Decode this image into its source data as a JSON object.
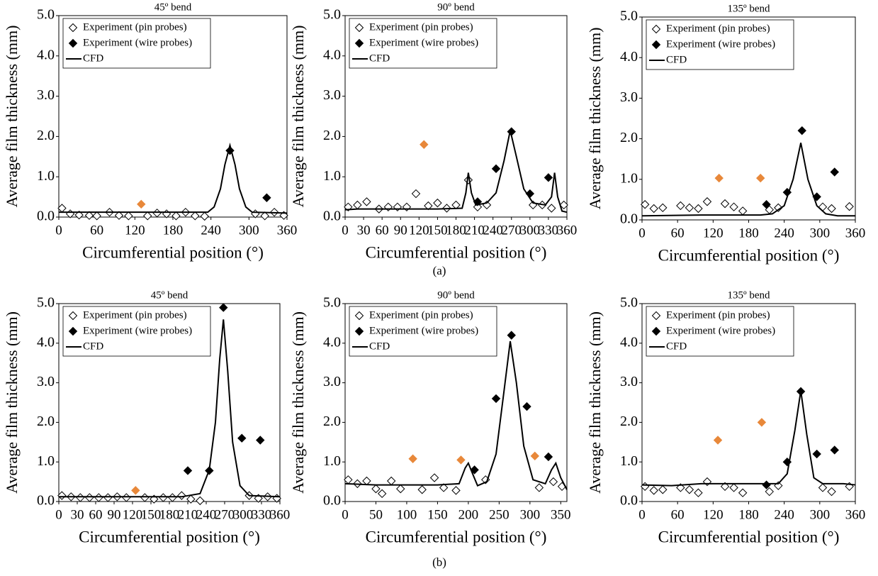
{
  "captions": [
    "(a)",
    "(b)"
  ],
  "chart_data": [
    {
      "type": "line",
      "title": "45º bend",
      "xlabel": "Circumferential position (°)",
      "ylabel": "Average film thickness (mm)",
      "xlim": [
        0,
        360
      ],
      "xticks": [
        0,
        60,
        120,
        180,
        240,
        300,
        360
      ],
      "ylim": [
        0,
        5
      ],
      "yticks": [
        {
          "value": 0,
          "label": "0.0"
        },
        {
          "value": 1,
          "label": "1.0"
        },
        {
          "value": 2,
          "label": "2.0"
        },
        {
          "value": 3,
          "label": "3.0"
        },
        {
          "value": 4,
          "label": "4.0"
        },
        {
          "value": 5,
          "label": "5.0"
        }
      ],
      "series": [
        {
          "name": "Experiment (pin probes)",
          "style": "open-diamond",
          "color": "#000000",
          "x": [
            5,
            18,
            32,
            48,
            60,
            80,
            95,
            110,
            140,
            155,
            170,
            185,
            200,
            215,
            230,
            310,
            325,
            340,
            355
          ],
          "values": [
            0.22,
            0.08,
            0.05,
            0.04,
            0.03,
            0.12,
            0.04,
            0.03,
            0.03,
            0.1,
            0.08,
            0.03,
            0.12,
            0.03,
            0.02,
            0.08,
            0.03,
            0.12,
            0.04
          ]
        },
        {
          "name": "Experiment (wire probes)",
          "style": "filled-diamond",
          "color": "#000000",
          "x": [
            130,
            270,
            328
          ],
          "values": [
            0.32,
            1.65,
            0.48
          ],
          "point_colors": [
            "#e8883a",
            "#000000",
            "#000000"
          ]
        },
        {
          "name": "CFD",
          "style": "line",
          "color": "#000000",
          "x": [
            0,
            100,
            200,
            235,
            245,
            255,
            262,
            270,
            278,
            285,
            295,
            305,
            360
          ],
          "values": [
            0.12,
            0.12,
            0.12,
            0.12,
            0.25,
            0.7,
            1.3,
            1.78,
            1.3,
            0.7,
            0.25,
            0.12,
            0.1
          ]
        }
      ]
    },
    {
      "type": "line",
      "title": "90º bend",
      "xlabel": "Circumferential position (°)",
      "ylabel": "Average film thickness (mm)",
      "xlim": [
        0,
        360
      ],
      "xticks": [
        0,
        30,
        60,
        90,
        120,
        150,
        180,
        210,
        240,
        270,
        300,
        330,
        360
      ],
      "ylim": [
        0,
        5
      ],
      "yticks": [
        {
          "value": 0,
          "label": "0.0"
        },
        {
          "value": 1,
          "label": "1.0"
        },
        {
          "value": 2,
          "label": "2.0"
        },
        {
          "value": 3,
          "label": "3.0"
        },
        {
          "value": 4,
          "label": "4.0"
        },
        {
          "value": 5,
          "label": "5.0"
        }
      ],
      "series": [
        {
          "name": "Experiment (pin probes)",
          "style": "open-diamond",
          "color": "#000000",
          "x": [
            5,
            20,
            35,
            55,
            70,
            85,
            100,
            115,
            135,
            150,
            165,
            180,
            200,
            215,
            230,
            305,
            320,
            335,
            355
          ],
          "values": [
            0.25,
            0.3,
            0.38,
            0.2,
            0.25,
            0.25,
            0.25,
            0.58,
            0.28,
            0.35,
            0.22,
            0.3,
            0.92,
            0.25,
            0.3,
            0.3,
            0.3,
            0.22,
            0.3
          ]
        },
        {
          "name": "Experiment (wire probes)",
          "style": "filled-diamond",
          "color": "#000000",
          "x": [
            128,
            215,
            245,
            270,
            300,
            330
          ],
          "values": [
            1.8,
            0.38,
            1.2,
            2.12,
            0.58,
            0.98
          ],
          "point_colors": [
            "#e8883a",
            "#000000",
            "#000000",
            "#000000",
            "#000000",
            "#000000"
          ]
        },
        {
          "name": "CFD",
          "style": "line",
          "color": "#000000",
          "x": [
            0,
            20,
            60,
            100,
            150,
            190,
            196,
            200,
            205,
            212,
            230,
            245,
            258,
            268,
            278,
            290,
            305,
            325,
            335,
            340,
            345,
            352,
            360
          ],
          "values": [
            0.18,
            0.2,
            0.2,
            0.2,
            0.2,
            0.22,
            0.6,
            1.1,
            0.6,
            0.3,
            0.35,
            0.6,
            1.4,
            2.15,
            1.5,
            0.7,
            0.35,
            0.3,
            0.5,
            1.1,
            0.5,
            0.15,
            0.12
          ]
        }
      ]
    },
    {
      "type": "line",
      "title": "135º bend",
      "xlabel": "Circumferential position (°)",
      "ylabel": "Average film thickness (mm)",
      "xlim": [
        0,
        360
      ],
      "xticks": [
        0,
        60,
        120,
        180,
        240,
        300,
        360
      ],
      "ylim": [
        0,
        5
      ],
      "yticks": [
        {
          "value": 0,
          "label": "0.0"
        },
        {
          "value": 1,
          "label": "1.0"
        },
        {
          "value": 2,
          "label": "2.0"
        },
        {
          "value": 3,
          "label": "3.0"
        },
        {
          "value": 4,
          "label": "4.0"
        },
        {
          "value": 5,
          "label": "5.0"
        }
      ],
      "series": [
        {
          "name": "Experiment (pin probes)",
          "style": "open-diamond",
          "color": "#000000",
          "x": [
            5,
            20,
            35,
            65,
            80,
            95,
            110,
            140,
            155,
            170,
            215,
            230,
            305,
            320,
            350
          ],
          "values": [
            0.38,
            0.28,
            0.3,
            0.35,
            0.3,
            0.28,
            0.45,
            0.4,
            0.32,
            0.22,
            0.25,
            0.3,
            0.32,
            0.28,
            0.33
          ]
        },
        {
          "name": "Experiment (wire probes)",
          "style": "filled-diamond",
          "color": "#000000",
          "x": [
            130,
            200,
            210,
            245,
            270,
            295,
            325
          ],
          "values": [
            1.03,
            1.03,
            0.38,
            0.68,
            2.2,
            0.57,
            1.18
          ],
          "point_colors": [
            "#e8883a",
            "#e8883a",
            "#000000",
            "#000000",
            "#000000",
            "#000000",
            "#000000"
          ]
        },
        {
          "name": "CFD",
          "style": "line",
          "color": "#000000",
          "x": [
            0,
            100,
            200,
            220,
            240,
            255,
            268,
            280,
            295,
            310,
            330,
            360
          ],
          "values": [
            0.1,
            0.12,
            0.12,
            0.15,
            0.35,
            1.0,
            1.9,
            1.0,
            0.35,
            0.15,
            0.1,
            0.1
          ]
        }
      ]
    },
    {
      "type": "line",
      "title": "45º bend",
      "xlabel": "Circumferential position (°)",
      "ylabel": "Average film thickness (mm)",
      "xlim": [
        0,
        360
      ],
      "xticks": [
        0,
        30,
        60,
        90,
        120,
        150,
        180,
        210,
        240,
        270,
        300,
        330,
        360
      ],
      "ylim": [
        0,
        5
      ],
      "yticks": [
        {
          "value": 0,
          "label": "0.0"
        },
        {
          "value": 1,
          "label": "1.0"
        },
        {
          "value": 2,
          "label": "2.0"
        },
        {
          "value": 3,
          "label": "3.0"
        },
        {
          "value": 4,
          "label": "4.0"
        },
        {
          "value": 5,
          "label": "5.0"
        }
      ],
      "series": [
        {
          "name": "Experiment (pin probes)",
          "style": "open-diamond",
          "color": "#000000",
          "x": [
            5,
            20,
            35,
            50,
            65,
            80,
            95,
            110,
            140,
            155,
            170,
            185,
            200,
            215,
            230,
            310,
            325,
            340,
            355
          ],
          "values": [
            0.15,
            0.12,
            0.1,
            0.1,
            0.1,
            0.1,
            0.12,
            0.1,
            0.1,
            0.06,
            0.1,
            0.1,
            0.15,
            0.06,
            0.02,
            0.15,
            0.08,
            0.12,
            0.08
          ]
        },
        {
          "name": "Experiment (wire probes)",
          "style": "filled-diamond",
          "color": "#000000",
          "x": [
            125,
            210,
            245,
            268,
            298,
            328
          ],
          "values": [
            0.28,
            0.78,
            0.78,
            4.9,
            1.6,
            1.55
          ],
          "point_colors": [
            "#e8883a",
            "#000000",
            "#000000",
            "#000000",
            "#000000",
            "#000000"
          ]
        },
        {
          "name": "CFD",
          "style": "line",
          "color": "#000000",
          "x": [
            0,
            200,
            230,
            245,
            255,
            262,
            268,
            275,
            283,
            295,
            310,
            360
          ],
          "values": [
            0.12,
            0.12,
            0.2,
            0.8,
            2.0,
            3.6,
            4.6,
            3.3,
            1.5,
            0.4,
            0.15,
            0.12
          ]
        }
      ]
    },
    {
      "type": "line",
      "title": "90º bend",
      "xlabel": "Circumferential position (°)",
      "ylabel": "Average film thickness (mm)",
      "xlim": [
        0,
        360
      ],
      "xticks": [
        0,
        50,
        100,
        150,
        200,
        250,
        300,
        350
      ],
      "ylim": [
        0,
        5
      ],
      "yticks": [
        {
          "value": 0,
          "label": "0.0"
        },
        {
          "value": 1,
          "label": "1.0"
        },
        {
          "value": 2,
          "label": "2.0"
        },
        {
          "value": 3,
          "label": "3.0"
        },
        {
          "value": 4,
          "label": "4.0"
        },
        {
          "value": 5,
          "label": "5.0"
        }
      ],
      "series": [
        {
          "name": "Experiment (pin probes)",
          "style": "open-diamond",
          "color": "#000000",
          "x": [
            5,
            20,
            35,
            50,
            60,
            75,
            90,
            125,
            145,
            160,
            180,
            228,
            315,
            338,
            352
          ],
          "values": [
            0.55,
            0.45,
            0.52,
            0.32,
            0.2,
            0.52,
            0.32,
            0.3,
            0.6,
            0.35,
            0.28,
            0.55,
            0.35,
            0.5,
            0.38
          ]
        },
        {
          "name": "Experiment (wire probes)",
          "style": "filled-diamond",
          "color": "#000000",
          "x": [
            110,
            188,
            210,
            245,
            270,
            295,
            308,
            330
          ],
          "values": [
            1.08,
            1.05,
            0.8,
            2.6,
            4.2,
            2.4,
            1.15,
            1.13
          ],
          "point_colors": [
            "#e8883a",
            "#e8883a",
            "#000000",
            "#000000",
            "#000000",
            "#000000",
            "#e8883a",
            "#000000"
          ]
        },
        {
          "name": "CFD",
          "style": "line",
          "color": "#000000",
          "x": [
            0,
            50,
            100,
            150,
            185,
            195,
            200,
            207,
            215,
            230,
            245,
            258,
            268,
            278,
            290,
            305,
            325,
            335,
            342,
            350,
            360
          ],
          "values": [
            0.45,
            0.42,
            0.42,
            0.42,
            0.45,
            0.85,
            0.97,
            0.7,
            0.4,
            0.5,
            1.2,
            2.8,
            4.05,
            3.0,
            1.4,
            0.55,
            0.45,
            0.8,
            0.97,
            0.6,
            0.3
          ]
        }
      ]
    },
    {
      "type": "line",
      "title": "135º bend",
      "xlabel": "Circumferential position (°)",
      "ylabel": "Average film thickness (mm)",
      "xlim": [
        0,
        360
      ],
      "xticks": [
        0,
        60,
        120,
        180,
        240,
        300,
        360
      ],
      "ylim": [
        0,
        5
      ],
      "yticks": [
        {
          "value": 0,
          "label": "0.0"
        },
        {
          "value": 1,
          "label": "1.0"
        },
        {
          "value": 2,
          "label": "2.0"
        },
        {
          "value": 3,
          "label": "3.0"
        },
        {
          "value": 4,
          "label": "4.0"
        },
        {
          "value": 5,
          "label": "5.0"
        }
      ],
      "series": [
        {
          "name": "Experiment (pin probes)",
          "style": "open-diamond",
          "color": "#000000",
          "x": [
            5,
            20,
            35,
            65,
            80,
            95,
            110,
            140,
            155,
            170,
            215,
            230,
            305,
            320,
            350
          ],
          "values": [
            0.38,
            0.28,
            0.3,
            0.35,
            0.3,
            0.22,
            0.5,
            0.38,
            0.35,
            0.22,
            0.25,
            0.4,
            0.35,
            0.25,
            0.38
          ]
        },
        {
          "name": "Experiment (wire probes)",
          "style": "filled-diamond",
          "color": "#000000",
          "x": [
            128,
            202,
            210,
            245,
            268,
            295,
            325
          ],
          "values": [
            1.55,
            2.0,
            0.42,
            1.0,
            2.78,
            1.2,
            1.3
          ],
          "point_colors": [
            "#e8883a",
            "#e8883a",
            "#000000",
            "#000000",
            "#000000",
            "#000000",
            "#000000"
          ]
        },
        {
          "name": "CFD",
          "style": "line",
          "color": "#000000",
          "x": [
            0,
            50,
            100,
            150,
            200,
            230,
            245,
            258,
            268,
            278,
            290,
            305,
            340,
            360
          ],
          "values": [
            0.42,
            0.4,
            0.45,
            0.45,
            0.45,
            0.45,
            0.7,
            1.8,
            2.8,
            1.7,
            0.6,
            0.45,
            0.45,
            0.42
          ]
        }
      ]
    }
  ]
}
